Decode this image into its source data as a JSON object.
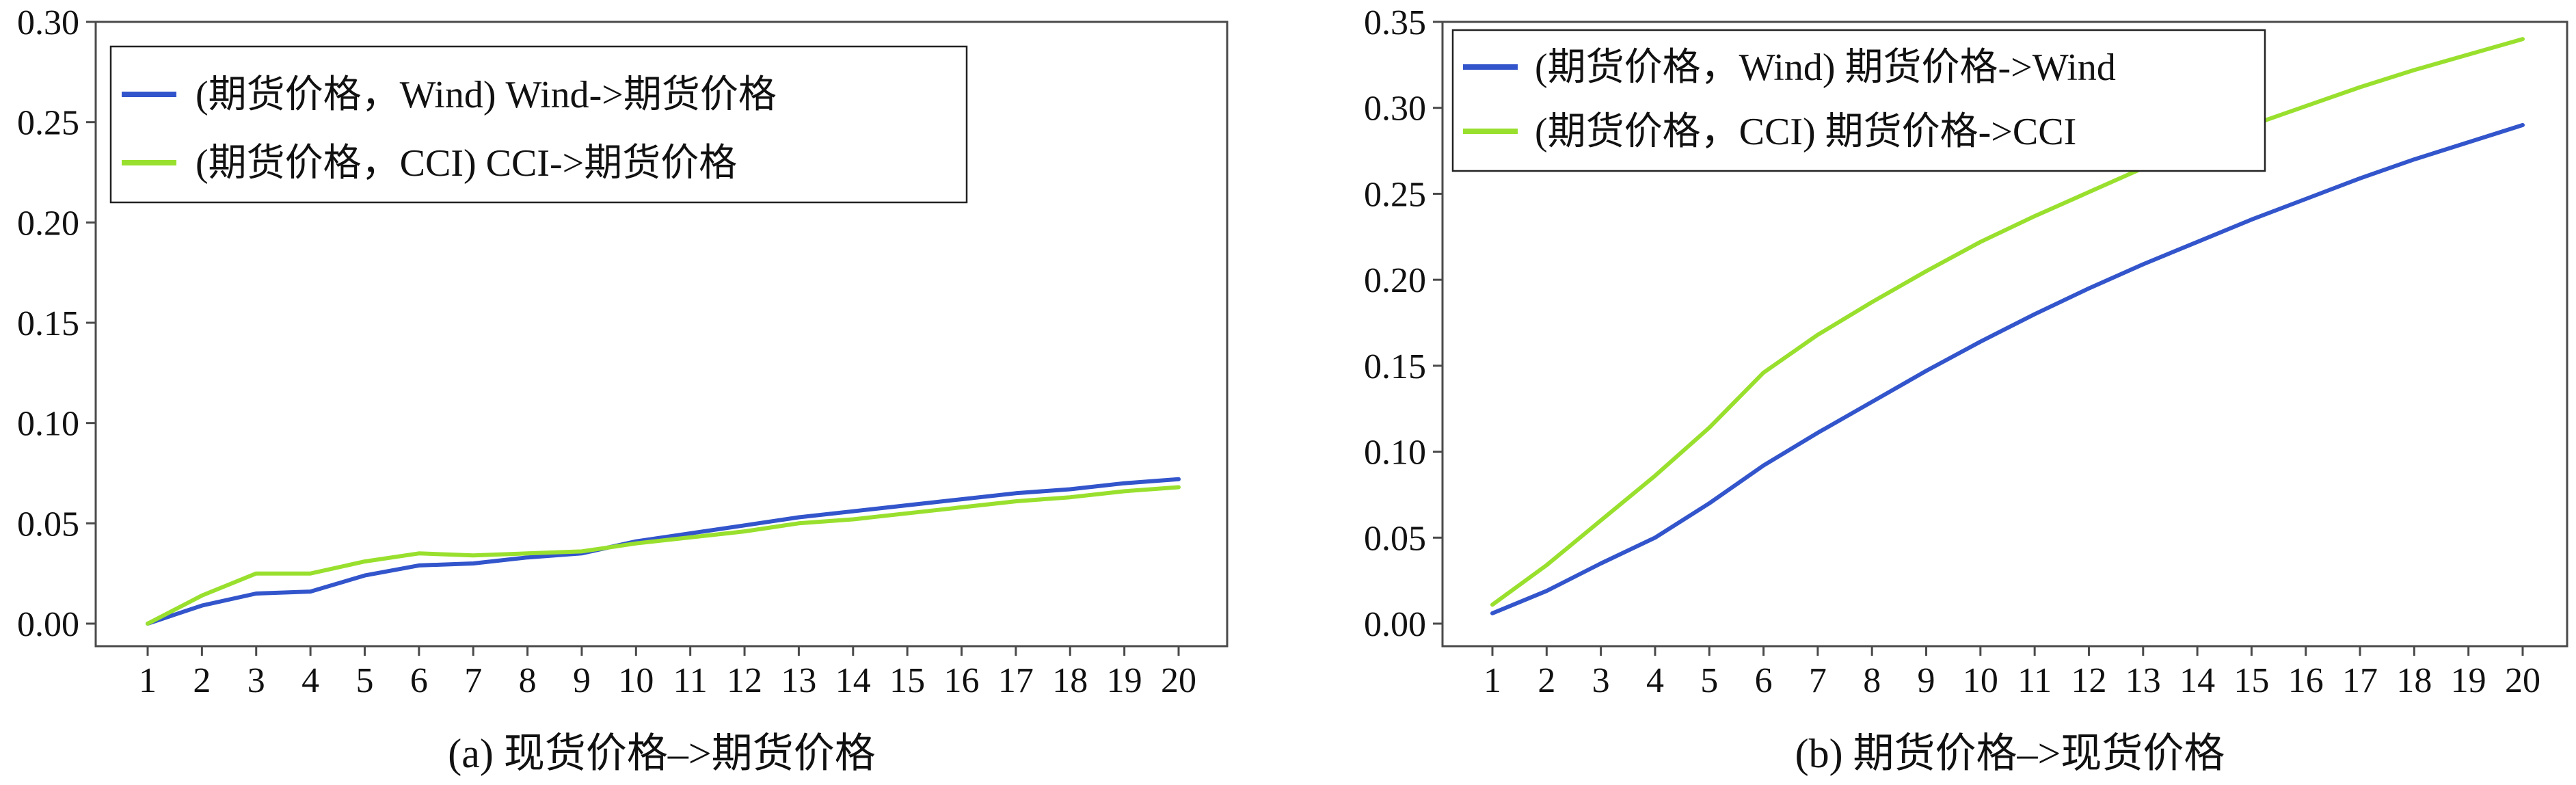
{
  "colors": {
    "wind": "#3355cc",
    "cci": "#99e02e",
    "axis": "#4a4a4a",
    "background": "#ffffff"
  },
  "chart_data": [
    {
      "type": "line",
      "caption": "(a) 现货价格–>期货价格",
      "x": [
        1,
        2,
        3,
        4,
        5,
        6,
        7,
        8,
        9,
        10,
        11,
        12,
        13,
        14,
        15,
        16,
        17,
        18,
        19,
        20
      ],
      "xticks": [
        "1",
        "2",
        "3",
        "4",
        "5",
        "6",
        "7",
        "8",
        "9",
        "10",
        "11",
        "12",
        "13",
        "14",
        "15",
        "16",
        "17",
        "18",
        "19",
        "20"
      ],
      "ylim": [
        0,
        0.3
      ],
      "yticks": [
        "0.00",
        "0.05",
        "0.10",
        "0.15",
        "0.20",
        "0.25",
        "0.30"
      ],
      "ytick_values": [
        0,
        0.05,
        0.1,
        0.15,
        0.2,
        0.25,
        0.3
      ],
      "legend_position": "top-left",
      "series": [
        {
          "name": "(期货价格，Wind) Wind->期货价格",
          "color": "#3355cc",
          "values": [
            0.0,
            0.009,
            0.015,
            0.016,
            0.024,
            0.029,
            0.03,
            0.033,
            0.035,
            0.041,
            0.045,
            0.049,
            0.053,
            0.056,
            0.059,
            0.062,
            0.065,
            0.067,
            0.07,
            0.072
          ]
        },
        {
          "name": "(期货价格，CCI) CCI->期货价格",
          "color": "#99e02e",
          "values": [
            0.0,
            0.014,
            0.025,
            0.025,
            0.031,
            0.035,
            0.034,
            0.035,
            0.036,
            0.04,
            0.043,
            0.046,
            0.05,
            0.052,
            0.055,
            0.058,
            0.061,
            0.063,
            0.066,
            0.068
          ]
        }
      ]
    },
    {
      "type": "line",
      "caption": "(b) 期货价格–>现货价格",
      "x": [
        1,
        2,
        3,
        4,
        5,
        6,
        7,
        8,
        9,
        10,
        11,
        12,
        13,
        14,
        15,
        16,
        17,
        18,
        19,
        20
      ],
      "xticks": [
        "1",
        "2",
        "3",
        "4",
        "5",
        "6",
        "7",
        "8",
        "9",
        "10",
        "11",
        "12",
        "13",
        "14",
        "15",
        "16",
        "17",
        "18",
        "19",
        "20"
      ],
      "ylim": [
        0,
        0.35
      ],
      "yticks": [
        "0.00",
        "0.05",
        "0.10",
        "0.15",
        "0.20",
        "0.25",
        "0.30",
        "0.35"
      ],
      "ytick_values": [
        0,
        0.05,
        0.1,
        0.15,
        0.2,
        0.25,
        0.3,
        0.35
      ],
      "legend_position": "top-left",
      "series": [
        {
          "name": "(期货价格，Wind) 期货价格->Wind",
          "color": "#3355cc",
          "values": [
            0.006,
            0.019,
            0.035,
            0.05,
            0.07,
            0.092,
            0.111,
            0.129,
            0.147,
            0.164,
            0.18,
            0.195,
            0.209,
            0.222,
            0.235,
            0.247,
            0.259,
            0.27,
            0.28,
            0.29
          ]
        },
        {
          "name": "(期货价格，CCI) 期货价格->CCI",
          "color": "#99e02e",
          "values": [
            0.011,
            0.034,
            0.06,
            0.086,
            0.114,
            0.146,
            0.168,
            0.187,
            0.205,
            0.222,
            0.237,
            0.251,
            0.265,
            0.278,
            0.29,
            0.301,
            0.312,
            0.322,
            0.331,
            0.34
          ]
        }
      ]
    }
  ]
}
